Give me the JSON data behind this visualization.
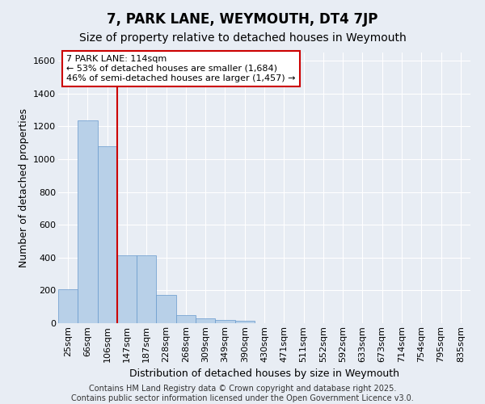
{
  "title": "7, PARK LANE, WEYMOUTH, DT4 7JP",
  "subtitle": "Size of property relative to detached houses in Weymouth",
  "xlabel": "Distribution of detached houses by size in Weymouth",
  "ylabel": "Number of detached properties",
  "categories": [
    "25sqm",
    "66sqm",
    "106sqm",
    "147sqm",
    "187sqm",
    "228sqm",
    "268sqm",
    "309sqm",
    "349sqm",
    "390sqm",
    "430sqm",
    "471sqm",
    "511sqm",
    "552sqm",
    "592sqm",
    "633sqm",
    "673sqm",
    "714sqm",
    "754sqm",
    "795sqm",
    "835sqm"
  ],
  "values": [
    205,
    1235,
    1080,
    415,
    415,
    170,
    50,
    28,
    20,
    15,
    0,
    0,
    0,
    0,
    0,
    0,
    0,
    0,
    0,
    0,
    0
  ],
  "bar_color": "#b8d0e8",
  "bar_edge_color": "#6699cc",
  "background_color": "#e8edf4",
  "grid_color": "#ffffff",
  "vline_x_index": 2.5,
  "vline_color": "#cc0000",
  "ylim": [
    0,
    1650
  ],
  "yticks": [
    0,
    200,
    400,
    600,
    800,
    1000,
    1200,
    1400,
    1600
  ],
  "annotation_text": "7 PARK LANE: 114sqm\n← 53% of detached houses are smaller (1,684)\n46% of semi-detached houses are larger (1,457) →",
  "footer_line1": "Contains HM Land Registry data © Crown copyright and database right 2025.",
  "footer_line2": "Contains public sector information licensed under the Open Government Licence v3.0.",
  "title_fontsize": 12,
  "subtitle_fontsize": 10,
  "tick_fontsize": 8,
  "ylabel_fontsize": 9,
  "xlabel_fontsize": 9,
  "annotation_fontsize": 8,
  "footer_fontsize": 7
}
